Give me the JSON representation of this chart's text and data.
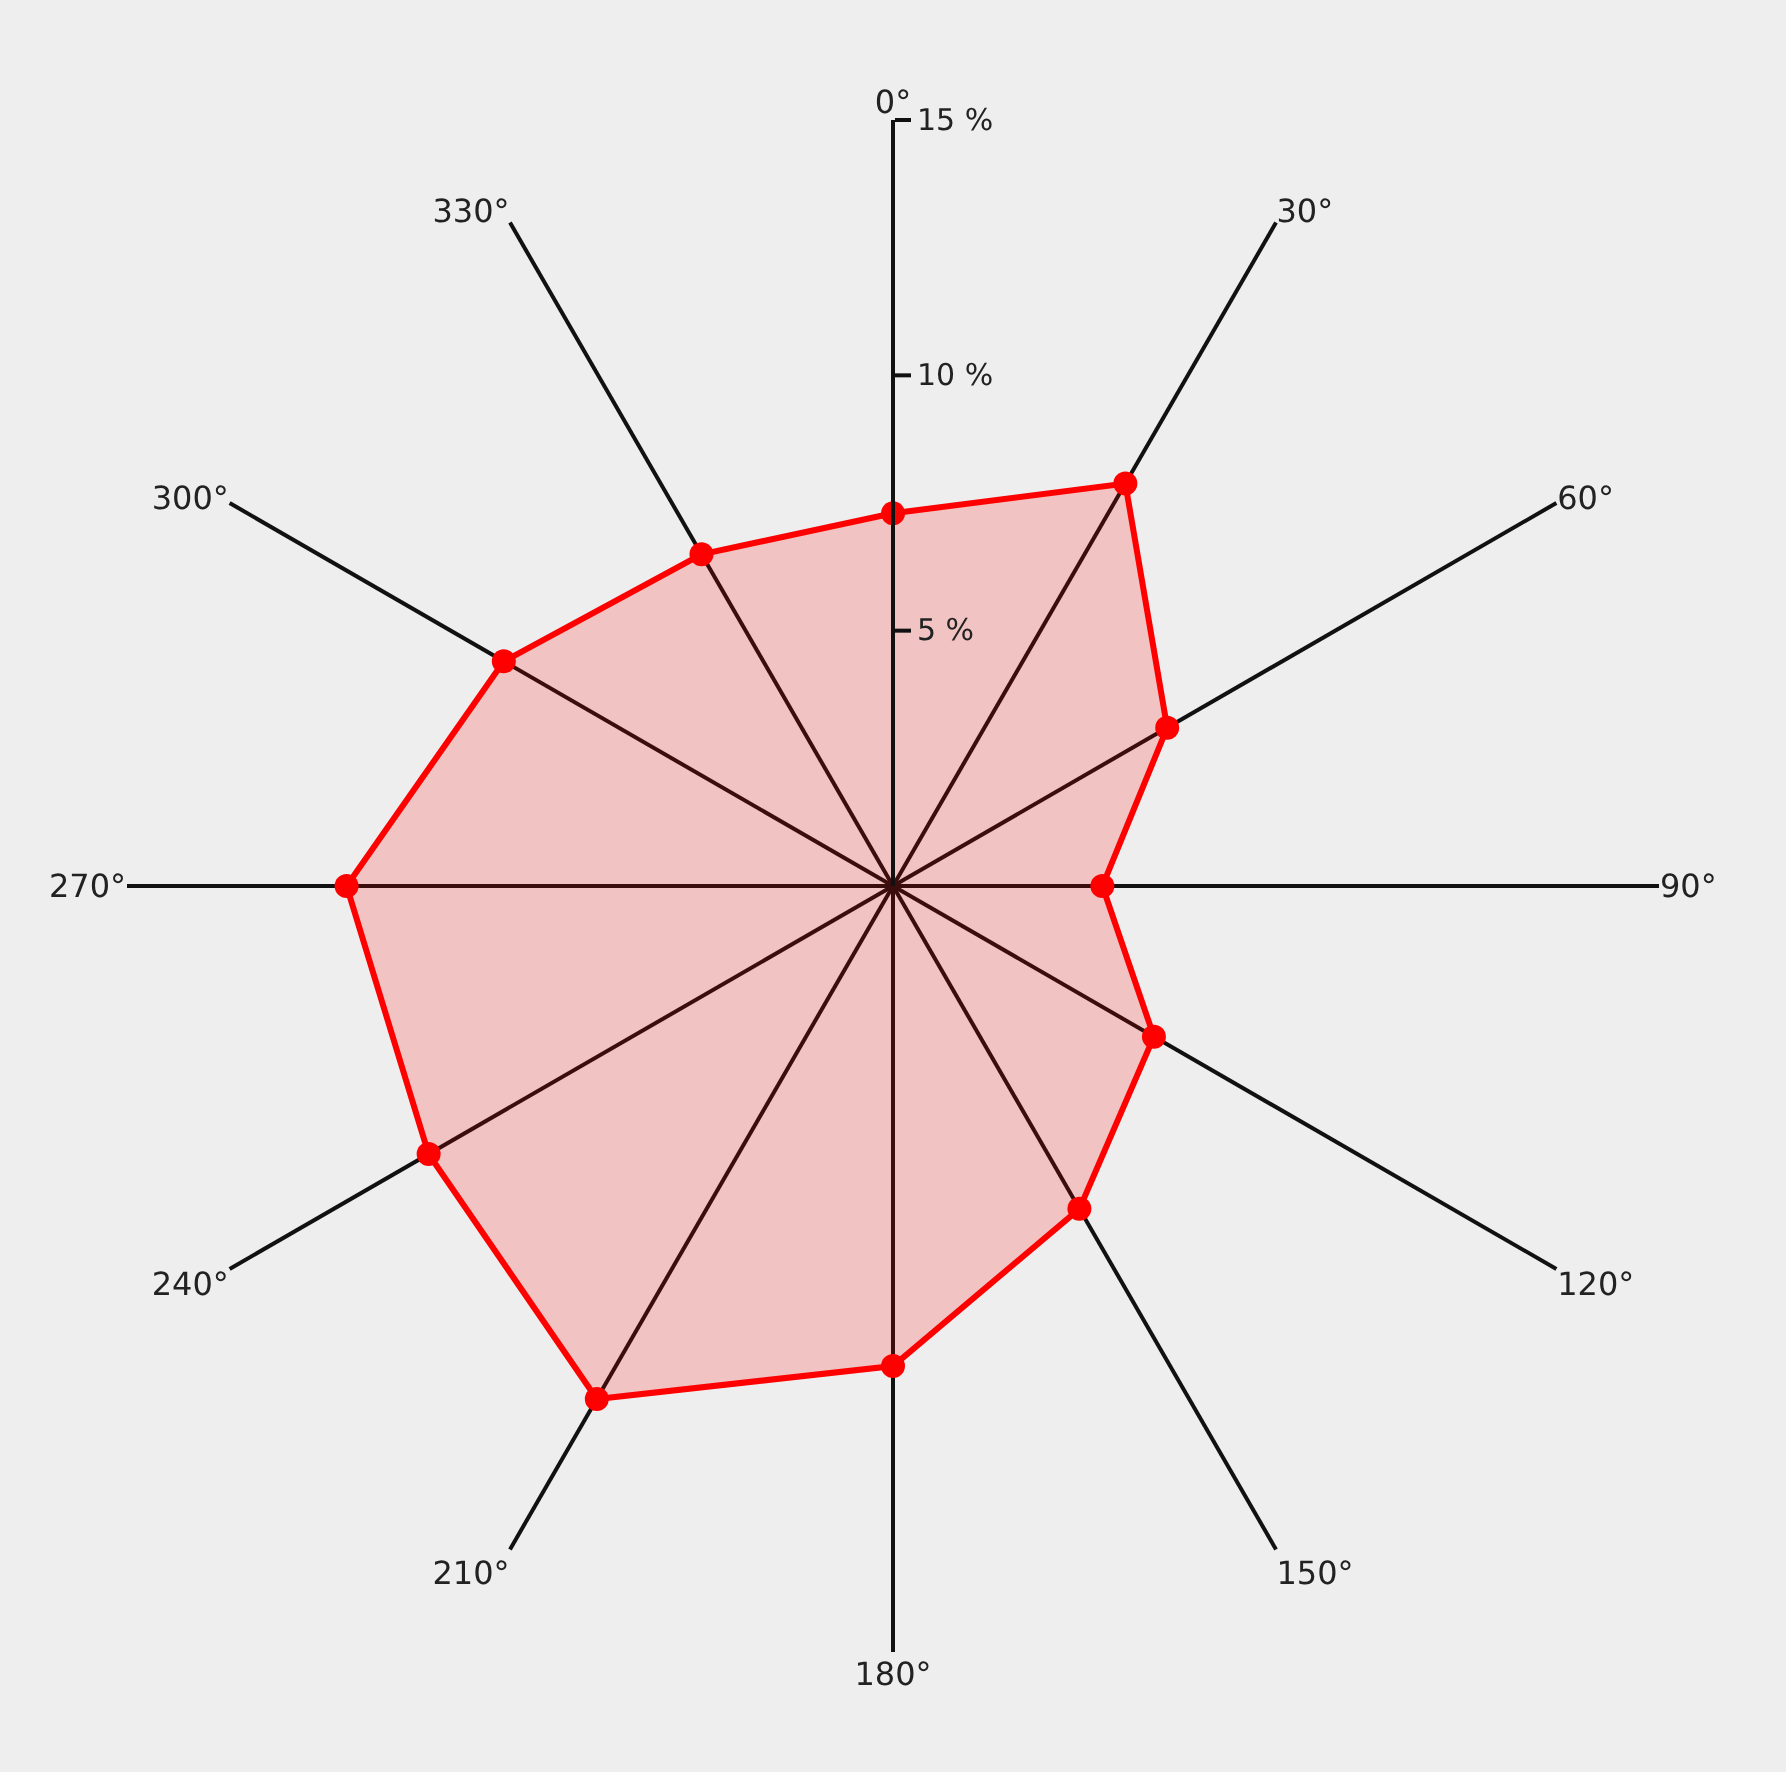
{
  "chart_data": {
    "type": "radar",
    "categories": [
      "0°",
      "30°",
      "60°",
      "90°",
      "120°",
      "150°",
      "180°",
      "210°",
      "240°",
      "270°",
      "300°",
      "330°"
    ],
    "series": [
      {
        "color": "#ff0000",
        "values": [
          7.3,
          9.1,
          6.2,
          4.1,
          5.9,
          7.3,
          9.4,
          11.6,
          10.5,
          10.7,
          8.8,
          7.5
        ]
      }
    ],
    "ylim": [
      0,
      15
    ],
    "yticks": [
      {
        "value": 5,
        "label": "5 %"
      },
      {
        "value": 10,
        "label": "10 %"
      },
      {
        "value": 15,
        "label": "15 %"
      }
    ],
    "grid": false,
    "marker": "circle",
    "line_style": "solid"
  }
}
